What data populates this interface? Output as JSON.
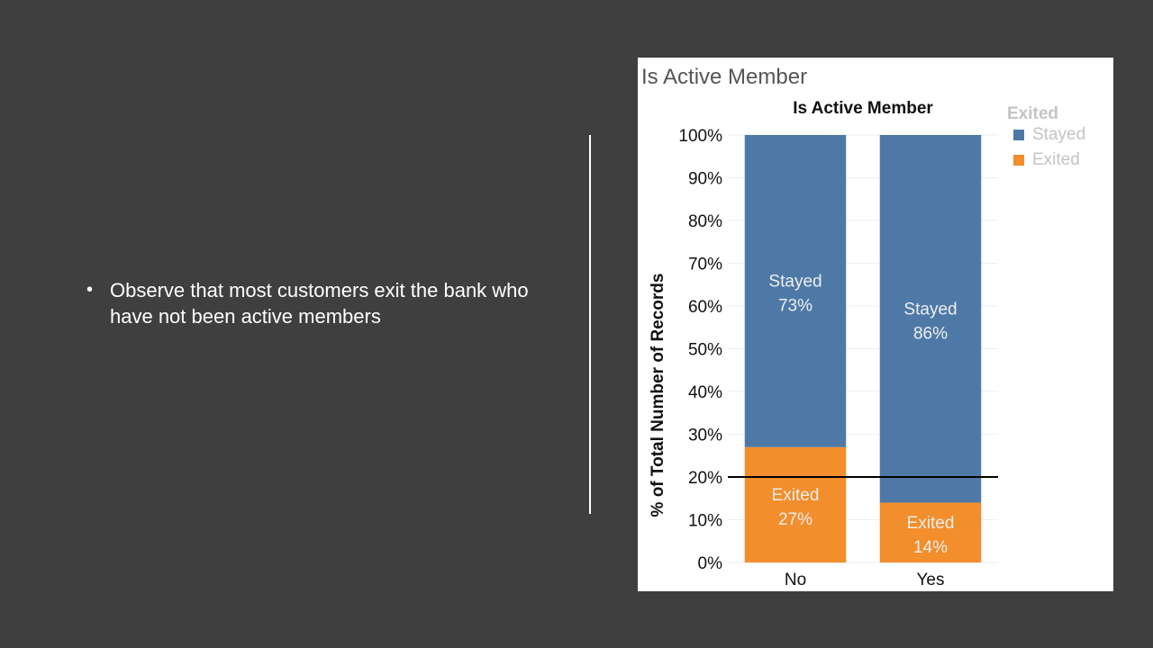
{
  "slide": {
    "bullet": "Observe that most customers exit the bank who have not been active members"
  },
  "chart_data": {
    "type": "bar",
    "stacked": true,
    "sheet_title": "Is Active Member",
    "title": "Is Active Member",
    "ylabel": "% of Total Number of Records",
    "xlabel": "",
    "categories": [
      "No",
      "Yes"
    ],
    "ylim": [
      0,
      100
    ],
    "yticks": [
      "0%",
      "10%",
      "20%",
      "30%",
      "40%",
      "50%",
      "60%",
      "70%",
      "80%",
      "90%",
      "100%"
    ],
    "series": [
      {
        "name": "Exited",
        "values": [
          27,
          14
        ],
        "labels": [
          "27%",
          "14%"
        ],
        "color": "#f28e2b"
      },
      {
        "name": "Stayed",
        "values": [
          73,
          86
        ],
        "labels": [
          "73%",
          "86%"
        ],
        "color": "#4e79a7"
      }
    ],
    "legend": {
      "title": "Exited",
      "placement": "top-right",
      "entries": [
        {
          "name": "Stayed",
          "color": "#4e79a7"
        },
        {
          "name": "Exited",
          "color": "#f28e2b"
        }
      ]
    },
    "reference_line": {
      "value": 20
    },
    "grid": true
  }
}
